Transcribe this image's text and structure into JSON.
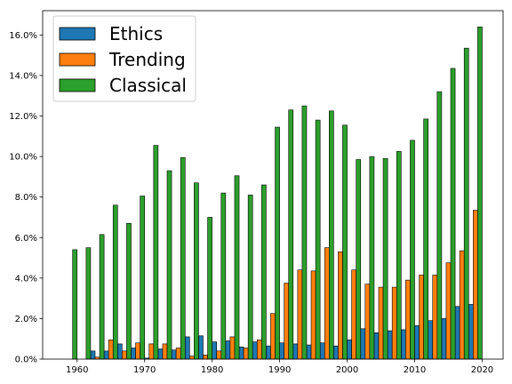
{
  "chart_data": {
    "type": "bar",
    "x": [
      1959,
      1961,
      1963,
      1965,
      1967,
      1969,
      1971,
      1973,
      1975,
      1977,
      1979,
      1981,
      1983,
      1985,
      1987,
      1989,
      1991,
      1993,
      1995,
      1997,
      1999,
      2001,
      2003,
      2005,
      2007,
      2009,
      2011,
      2013,
      2015,
      2017,
      2019
    ],
    "series": [
      {
        "name": "Ethics",
        "color": "#1f77b4",
        "values": [
          0.0,
          0.0,
          0.4,
          0.4,
          0.75,
          0.55,
          0.05,
          0.5,
          0.45,
          1.1,
          1.15,
          0.85,
          0.9,
          0.6,
          0.85,
          0.65,
          0.8,
          0.75,
          0.7,
          0.8,
          0.65,
          0.95,
          1.5,
          1.3,
          1.4,
          1.45,
          1.65,
          1.9,
          2.0,
          2.6,
          2.7
        ]
      },
      {
        "name": "Trending",
        "color": "#ff7f0e",
        "values": [
          0.0,
          0.0,
          0.1,
          0.95,
          0.4,
          0.8,
          0.75,
          0.75,
          0.55,
          0.15,
          0.2,
          0.4,
          1.1,
          0.55,
          0.95,
          2.25,
          3.75,
          4.4,
          4.35,
          5.5,
          5.3,
          4.4,
          3.7,
          3.55,
          3.55,
          3.9,
          4.15,
          4.15,
          4.75,
          5.35,
          7.35
        ]
      },
      {
        "name": "Classical",
        "color": "#2ca02c",
        "values": [
          5.4,
          5.5,
          6.15,
          7.6,
          6.7,
          8.05,
          10.55,
          9.3,
          9.95,
          8.7,
          7.0,
          8.2,
          9.05,
          8.1,
          8.6,
          11.45,
          12.3,
          12.5,
          11.8,
          12.25,
          11.55,
          9.85,
          10.0,
          9.9,
          10.25,
          10.8,
          11.85,
          13.2,
          14.35,
          15.35,
          16.4
        ]
      }
    ],
    "x_ticks": [
      1960,
      1970,
      1980,
      1990,
      2000,
      2010,
      2020
    ],
    "y_ticks": [
      0,
      2,
      4,
      6,
      8,
      10,
      12,
      14,
      16
    ],
    "y_tick_labels": [
      "0.0%",
      "2.0%",
      "4.0%",
      "6.0%",
      "8.0%",
      "10.0%",
      "12.0%",
      "14.0%",
      "16.0%"
    ],
    "xlim": [
      1954.9,
      2023.1
    ],
    "ylim": [
      0,
      17.2
    ],
    "legend_position": "top-left",
    "grid": false
  }
}
